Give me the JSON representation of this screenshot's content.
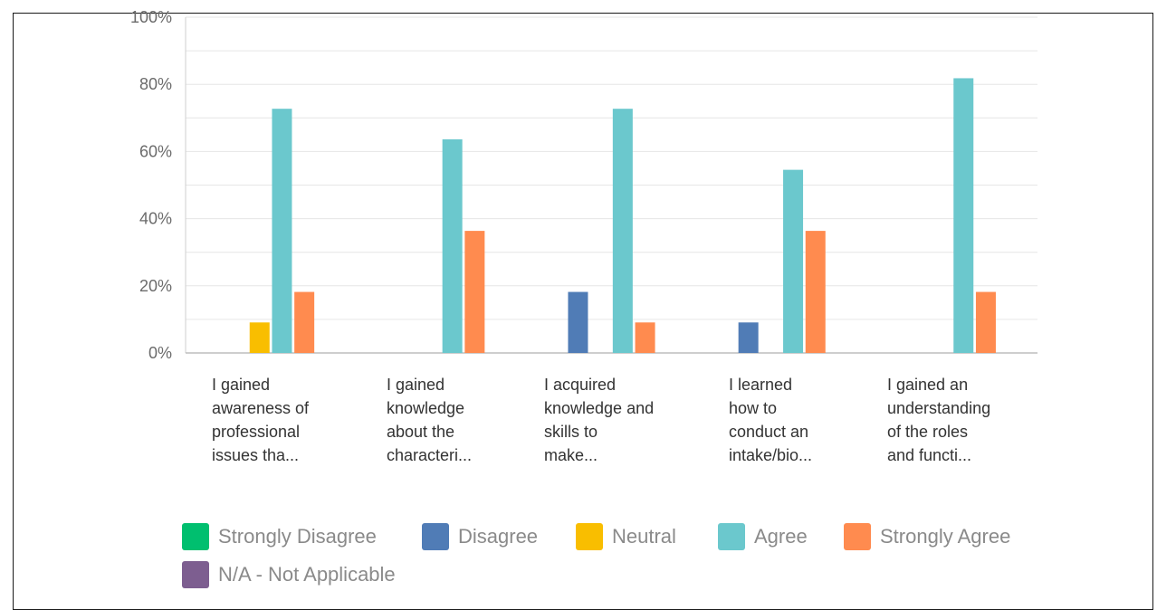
{
  "chart_data": {
    "type": "bar",
    "ylim": [
      0,
      100
    ],
    "y_ticks": [
      "0%",
      "20%",
      "40%",
      "60%",
      "80%",
      "100%"
    ],
    "y_tick_values": [
      0,
      20,
      40,
      60,
      80,
      100
    ],
    "grid": true,
    "legend_position": "bottom",
    "categories": [
      [
        "I gained",
        "awareness of",
        "professional",
        "issues tha..."
      ],
      [
        "I gained",
        "knowledge",
        "about the",
        "characteri..."
      ],
      [
        "I acquired",
        "knowledge and",
        "skills to",
        "make..."
      ],
      [
        "I learned",
        "how to",
        "conduct an",
        "intake/bio..."
      ],
      [
        "I gained an",
        "understanding",
        "of the roles",
        "and functi..."
      ]
    ],
    "series": [
      {
        "name": "Strongly Disagree",
        "color": "#00bf6f",
        "values": [
          0,
          0,
          0,
          0,
          0
        ]
      },
      {
        "name": "Disagree",
        "color": "#507cb6",
        "values": [
          0,
          0,
          18.18,
          9.09,
          0
        ]
      },
      {
        "name": "Neutral",
        "color": "#f9be00",
        "values": [
          9.09,
          0,
          0,
          0,
          0
        ]
      },
      {
        "name": "Agree",
        "color": "#6bc8cd",
        "values": [
          72.73,
          63.64,
          72.73,
          54.55,
          81.82
        ]
      },
      {
        "name": "Strongly Agree",
        "color": "#ff8b4f",
        "values": [
          18.18,
          36.36,
          9.09,
          36.36,
          18.18
        ]
      },
      {
        "name": "N/A - Not Applicable",
        "color": "#7d5e90",
        "values": [
          0,
          0,
          0,
          0,
          0
        ]
      }
    ]
  }
}
